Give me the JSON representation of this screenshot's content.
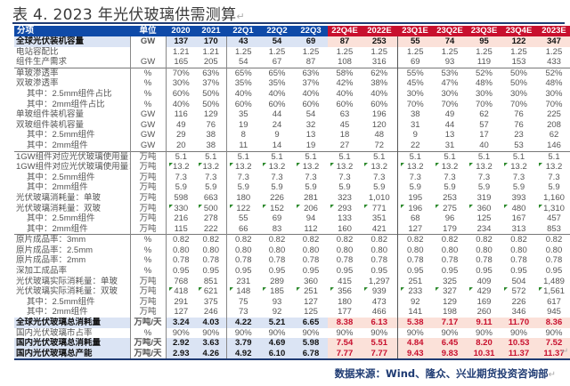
{
  "title": "表 4. 2023 年光伏玻璃供需测算",
  "return_mark": "↵",
  "table": {
    "headers": [
      "分项",
      "单位",
      "2020",
      "2021",
      "22Q1",
      "22Q2",
      "22Q3",
      "22Q4E",
      "2022E",
      "23Q1E",
      "23Q2E",
      "23Q3E",
      "23Q4E",
      "2023E"
    ],
    "rows": [
      {
        "label": "全球光伏装机容量",
        "unit": "GW",
        "values": [
          "137",
          "170",
          "43",
          "54",
          "69",
          "87",
          "253",
          "55",
          "74",
          "95",
          "122",
          "347"
        ],
        "style": "hl-black",
        "sub": false
      },
      {
        "label": "电站容配比",
        "unit": "",
        "values": [
          "1.21",
          "1.21",
          "1.25",
          "1.25",
          "1.25",
          "1.25",
          "1.25",
          "1.25",
          "1.25",
          "1.25",
          "1.25",
          "1.25"
        ],
        "sub": false
      },
      {
        "label": "组件生产需求",
        "unit": "GW",
        "values": [
          "165",
          "205",
          "54",
          "67",
          "87",
          "108",
          "316",
          "69",
          "93",
          "119",
          "153",
          "433"
        ],
        "sub": false
      },
      {
        "label": "单玻渗透率",
        "unit": "%",
        "values": [
          "70%",
          "63%",
          "65%",
          "65%",
          "63%",
          "58%",
          "62%",
          "55%",
          "53%",
          "52%",
          "50%",
          "52%"
        ],
        "sub": false,
        "sep": true
      },
      {
        "label": "双玻渗透率",
        "unit": "%",
        "values": [
          "30%",
          "37%",
          "35%",
          "35%",
          "37%",
          "42%",
          "38%",
          "45%",
          "47%",
          "48%",
          "50%",
          "48%"
        ],
        "sub": false
      },
      {
        "label": "其中：2.5mm组件占比",
        "unit": "%",
        "values": [
          "60%",
          "50%",
          "40%",
          "40%",
          "40%",
          "40%",
          "40%",
          "30%",
          "30%",
          "30%",
          "30%",
          "30%"
        ],
        "sub": true
      },
      {
        "label": "其中：2mm组件占比",
        "unit": "%",
        "values": [
          "40%",
          "50%",
          "60%",
          "60%",
          "60%",
          "60%",
          "60%",
          "70%",
          "70%",
          "70%",
          "70%",
          "70%"
        ],
        "sub": true
      },
      {
        "label": "单玻组件装机容量",
        "unit": "GW",
        "values": [
          "116",
          "129",
          "35",
          "44",
          "54",
          "63",
          "196",
          "38",
          "49",
          "62",
          "76",
          "225"
        ],
        "sub": false
      },
      {
        "label": "双玻组件装机容量",
        "unit": "GW",
        "values": [
          "49",
          "76",
          "19",
          "24",
          "32",
          "45",
          "120",
          "31",
          "44",
          "57",
          "76",
          "208"
        ],
        "sub": false
      },
      {
        "label": "其中：2.5mm组件",
        "unit": "GW",
        "values": [
          "29",
          "38",
          "8",
          "9",
          "13",
          "18",
          "48",
          "9",
          "13",
          "17",
          "23",
          "62"
        ],
        "sub": true
      },
      {
        "label": "其中：2mm组件",
        "unit": "GW",
        "values": [
          "20",
          "38",
          "11",
          "14",
          "19",
          "27",
          "72",
          "22",
          "31",
          "40",
          "53",
          "146"
        ],
        "sub": true
      },
      {
        "label": "1GW组件对应光伏玻璃使用量：单玻",
        "unit": "万吨",
        "values": [
          "5.1",
          "5.1",
          "5.1",
          "5.1",
          "5.1",
          "5.1",
          "5.1",
          "5.1",
          "5.1",
          "5.1",
          "5.1",
          "5.1"
        ],
        "sub": false,
        "sep": true
      },
      {
        "label": "1GW组件对应光伏玻璃使用量：双玻",
        "unit": "万吨",
        "values": [
          "13.2",
          "13.2",
          "13.2",
          "13.2",
          "13.2",
          "13.2",
          "13.2",
          "13.2",
          "13.2",
          "13.2",
          "13.2",
          "13.2"
        ],
        "sub": false,
        "flags": true
      },
      {
        "label": "其中：2.5mm组件",
        "unit": "万吨",
        "values": [
          "7.3",
          "7.3",
          "7.3",
          "7.3",
          "7.3",
          "7.3",
          "7.3",
          "7.3",
          "7.3",
          "7.3",
          "7.3",
          "7.3"
        ],
        "sub": true
      },
      {
        "label": "其中：2mm组件",
        "unit": "万吨",
        "values": [
          "5.9",
          "5.9",
          "5.9",
          "5.9",
          "5.9",
          "5.9",
          "5.9",
          "5.9",
          "5.9",
          "5.9",
          "5.9",
          "5.9"
        ],
        "sub": true
      },
      {
        "label": "光伏玻璃消耗量：单玻",
        "unit": "万吨",
        "values": [
          "598",
          "663",
          "180",
          "226",
          "281",
          "323",
          "1,010",
          "195",
          "253",
          "319",
          "393",
          "1,160"
        ],
        "sub": false
      },
      {
        "label": "光伏玻璃消耗量：双玻",
        "unit": "万吨",
        "values": [
          "330",
          "500",
          "122",
          "152",
          "206",
          "293",
          "771",
          "196",
          "275",
          "360",
          "480",
          "1,310"
        ],
        "sub": false,
        "flags": true
      },
      {
        "label": "其中：2.5mm组件",
        "unit": "万吨",
        "values": [
          "216",
          "278",
          "55",
          "69",
          "94",
          "133",
          "351",
          "68",
          "96",
          "125",
          "167",
          "457"
        ],
        "sub": true
      },
      {
        "label": "其中：2mm组件",
        "unit": "万吨",
        "values": [
          "115",
          "222",
          "66",
          "83",
          "112",
          "160",
          "421",
          "127",
          "179",
          "234",
          "313",
          "853"
        ],
        "sub": true
      },
      {
        "label": "原片成品率：3mm",
        "unit": "%",
        "values": [
          "0.82",
          "0.82",
          "0.82",
          "0.82",
          "0.82",
          "0.82",
          "0.82",
          "0.82",
          "0.82",
          "0.82",
          "0.82",
          "0.82"
        ],
        "sub": false,
        "sep": true
      },
      {
        "label": "原片成品率：2.5mm",
        "unit": "%",
        "values": [
          "0.80",
          "0.80",
          "0.80",
          "0.80",
          "0.80",
          "0.80",
          "0.80",
          "0.80",
          "0.80",
          "0.80",
          "0.80",
          "0.80"
        ],
        "sub": false
      },
      {
        "label": "原片成品率：2mm",
        "unit": "%",
        "values": [
          "0.78",
          "0.78",
          "0.78",
          "0.78",
          "0.78",
          "0.78",
          "0.78",
          "0.78",
          "0.78",
          "0.78",
          "0.78",
          "0.78"
        ],
        "sub": false
      },
      {
        "label": "深加工成品率",
        "unit": "%",
        "values": [
          "0.95",
          "0.95",
          "0.95",
          "0.95",
          "0.95",
          "0.95",
          "0.95",
          "0.95",
          "0.95",
          "0.95",
          "0.95",
          "0.95"
        ],
        "sub": false
      },
      {
        "label": "光伏玻璃实际消耗量：单玻",
        "unit": "万吨",
        "values": [
          "768",
          "851",
          "231",
          "289",
          "360",
          "415",
          "1,297",
          "251",
          "325",
          "409",
          "504",
          "1,489"
        ],
        "sub": false
      },
      {
        "label": "光伏玻璃实际消耗量：双玻",
        "unit": "万吨",
        "values": [
          "418",
          "621",
          "148",
          "185",
          "251",
          "356",
          "939",
          "233",
          "327",
          "429",
          "572",
          "1,561"
        ],
        "sub": false,
        "flags": true
      },
      {
        "label": "其中：2.5mm组件",
        "unit": "万吨",
        "values": [
          "291",
          "375",
          "75",
          "93",
          "127",
          "180",
          "473",
          "92",
          "129",
          "169",
          "226",
          "617"
        ],
        "sub": true
      },
      {
        "label": "其中：2mm组件",
        "unit": "万吨",
        "values": [
          "127",
          "246",
          "73",
          "92",
          "125",
          "177",
          "466",
          "141",
          "198",
          "260",
          "346",
          "945"
        ],
        "sub": true
      },
      {
        "label": "全球光伏玻璃总消耗量",
        "unit": "万吨/天",
        "values": [
          "3.24",
          "4.03",
          "4.22",
          "5.21",
          "6.65",
          "8.38",
          "6.13",
          "5.38",
          "7.17",
          "9.11",
          "11.70",
          "8.36"
        ],
        "style": "hl-red",
        "sub": false
      },
      {
        "label": "国内光伏玻璃市占率",
        "unit": "%",
        "values": [
          "90%",
          "90%",
          "90%",
          "90%",
          "90%",
          "90%",
          "90%",
          "90%",
          "90%",
          "90%",
          "90%",
          "90%"
        ],
        "sub": false
      },
      {
        "label": "国内光伏玻璃总消耗量",
        "unit": "万吨/天",
        "values": [
          "2.92",
          "3.63",
          "3.79",
          "4.69",
          "5.98",
          "7.54",
          "5.51",
          "4.84",
          "6.45",
          "8.20",
          "10.53",
          "7.52"
        ],
        "style": "hl-red",
        "sub": false
      },
      {
        "label": "国内光伏玻璃总产能",
        "unit": "万吨/天",
        "values": [
          "2.93",
          "4.26",
          "4.92",
          "6.10",
          "6.78",
          "7.77",
          "7.77",
          "9.43",
          "9.83",
          "10.31",
          "11.37",
          "11.37"
        ],
        "style": "hl-red",
        "sub": false,
        "last": true
      }
    ]
  },
  "source": "数据来源：Wind、隆众、兴业期货投资咨询部",
  "colors": {
    "header_hist": "#0f4aa8",
    "header_forecast": "#c8102e",
    "highlight_hist_bg": "#dbe4f4",
    "highlight_forecast_bg": "#fbe1d9",
    "forecast_text": "#c8102e",
    "rule": "#1f3b73"
  }
}
